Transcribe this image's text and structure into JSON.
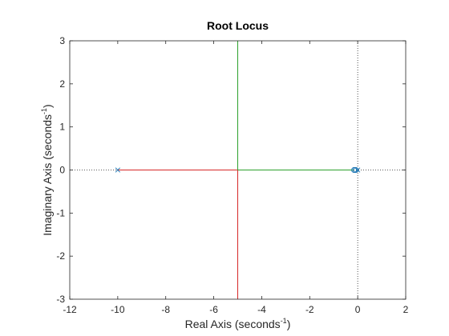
{
  "chart_data": {
    "type": "line",
    "title": "Root Locus",
    "xlabel": {
      "text": "Real Axis (seconds",
      "sup": "-1",
      "tail": ")"
    },
    "ylabel": {
      "text": "Imaginary Axis (seconds",
      "sup": "-1",
      "tail": ")"
    },
    "xlim": [
      -12,
      2
    ],
    "ylim": [
      -3,
      3
    ],
    "xticks": [
      -12,
      -10,
      -8,
      -6,
      -4,
      -2,
      0,
      2
    ],
    "yticks": [
      -3,
      -2,
      -1,
      0,
      1,
      2,
      3
    ],
    "xtick_labels": [
      "-12",
      "-10",
      "-8",
      "-6",
      "-4",
      "-2",
      "0",
      "2"
    ],
    "ytick_labels": [
      "-3",
      "-2",
      "-1",
      "0",
      "1",
      "2",
      "3"
    ],
    "grid": false,
    "reference_lines": [
      {
        "orientation": "horizontal",
        "value": 0,
        "style": "dotted",
        "color": "#262626"
      },
      {
        "orientation": "vertical",
        "value": 0,
        "style": "dotted",
        "color": "#262626"
      }
    ],
    "series": [
      {
        "color": "#d62728",
        "segments": [
          {
            "x": [
              -10,
              -5
            ],
            "y": [
              0,
              0
            ]
          },
          {
            "x": [
              -5,
              -5
            ],
            "y": [
              0,
              -3
            ]
          }
        ]
      },
      {
        "color": "#2ca02c",
        "segments": [
          {
            "x": [
              -0.15,
              -5
            ],
            "y": [
              0,
              0
            ]
          },
          {
            "x": [
              -5,
              -5
            ],
            "y": [
              0,
              3
            ]
          }
        ]
      }
    ],
    "poles": [
      {
        "x": -10,
        "y": 0,
        "color": "#1f77b4"
      },
      {
        "x": 0,
        "y": 0,
        "color": "#1f77b4"
      }
    ],
    "zeros": [
      {
        "x": -0.15,
        "y": 0,
        "color": "#1f77b4"
      },
      {
        "x": -0.08,
        "y": 0,
        "color": "#1f77b4"
      }
    ]
  }
}
